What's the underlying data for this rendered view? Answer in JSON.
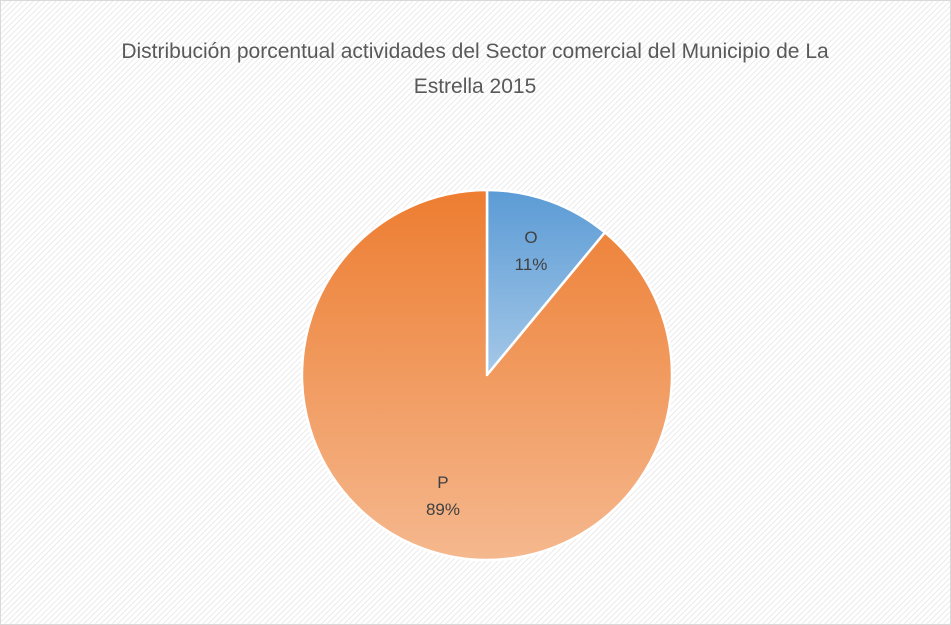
{
  "chart_data": {
    "type": "pie",
    "title": "Distribución porcentual actividades del Sector comercial  del Municipio de La Estrella 2015",
    "categories": [
      "O",
      "P"
    ],
    "values": [
      11,
      89
    ],
    "value_labels": [
      "11%",
      "89%"
    ],
    "colors": [
      "#5b9bd5",
      "#ed7d31"
    ]
  }
}
